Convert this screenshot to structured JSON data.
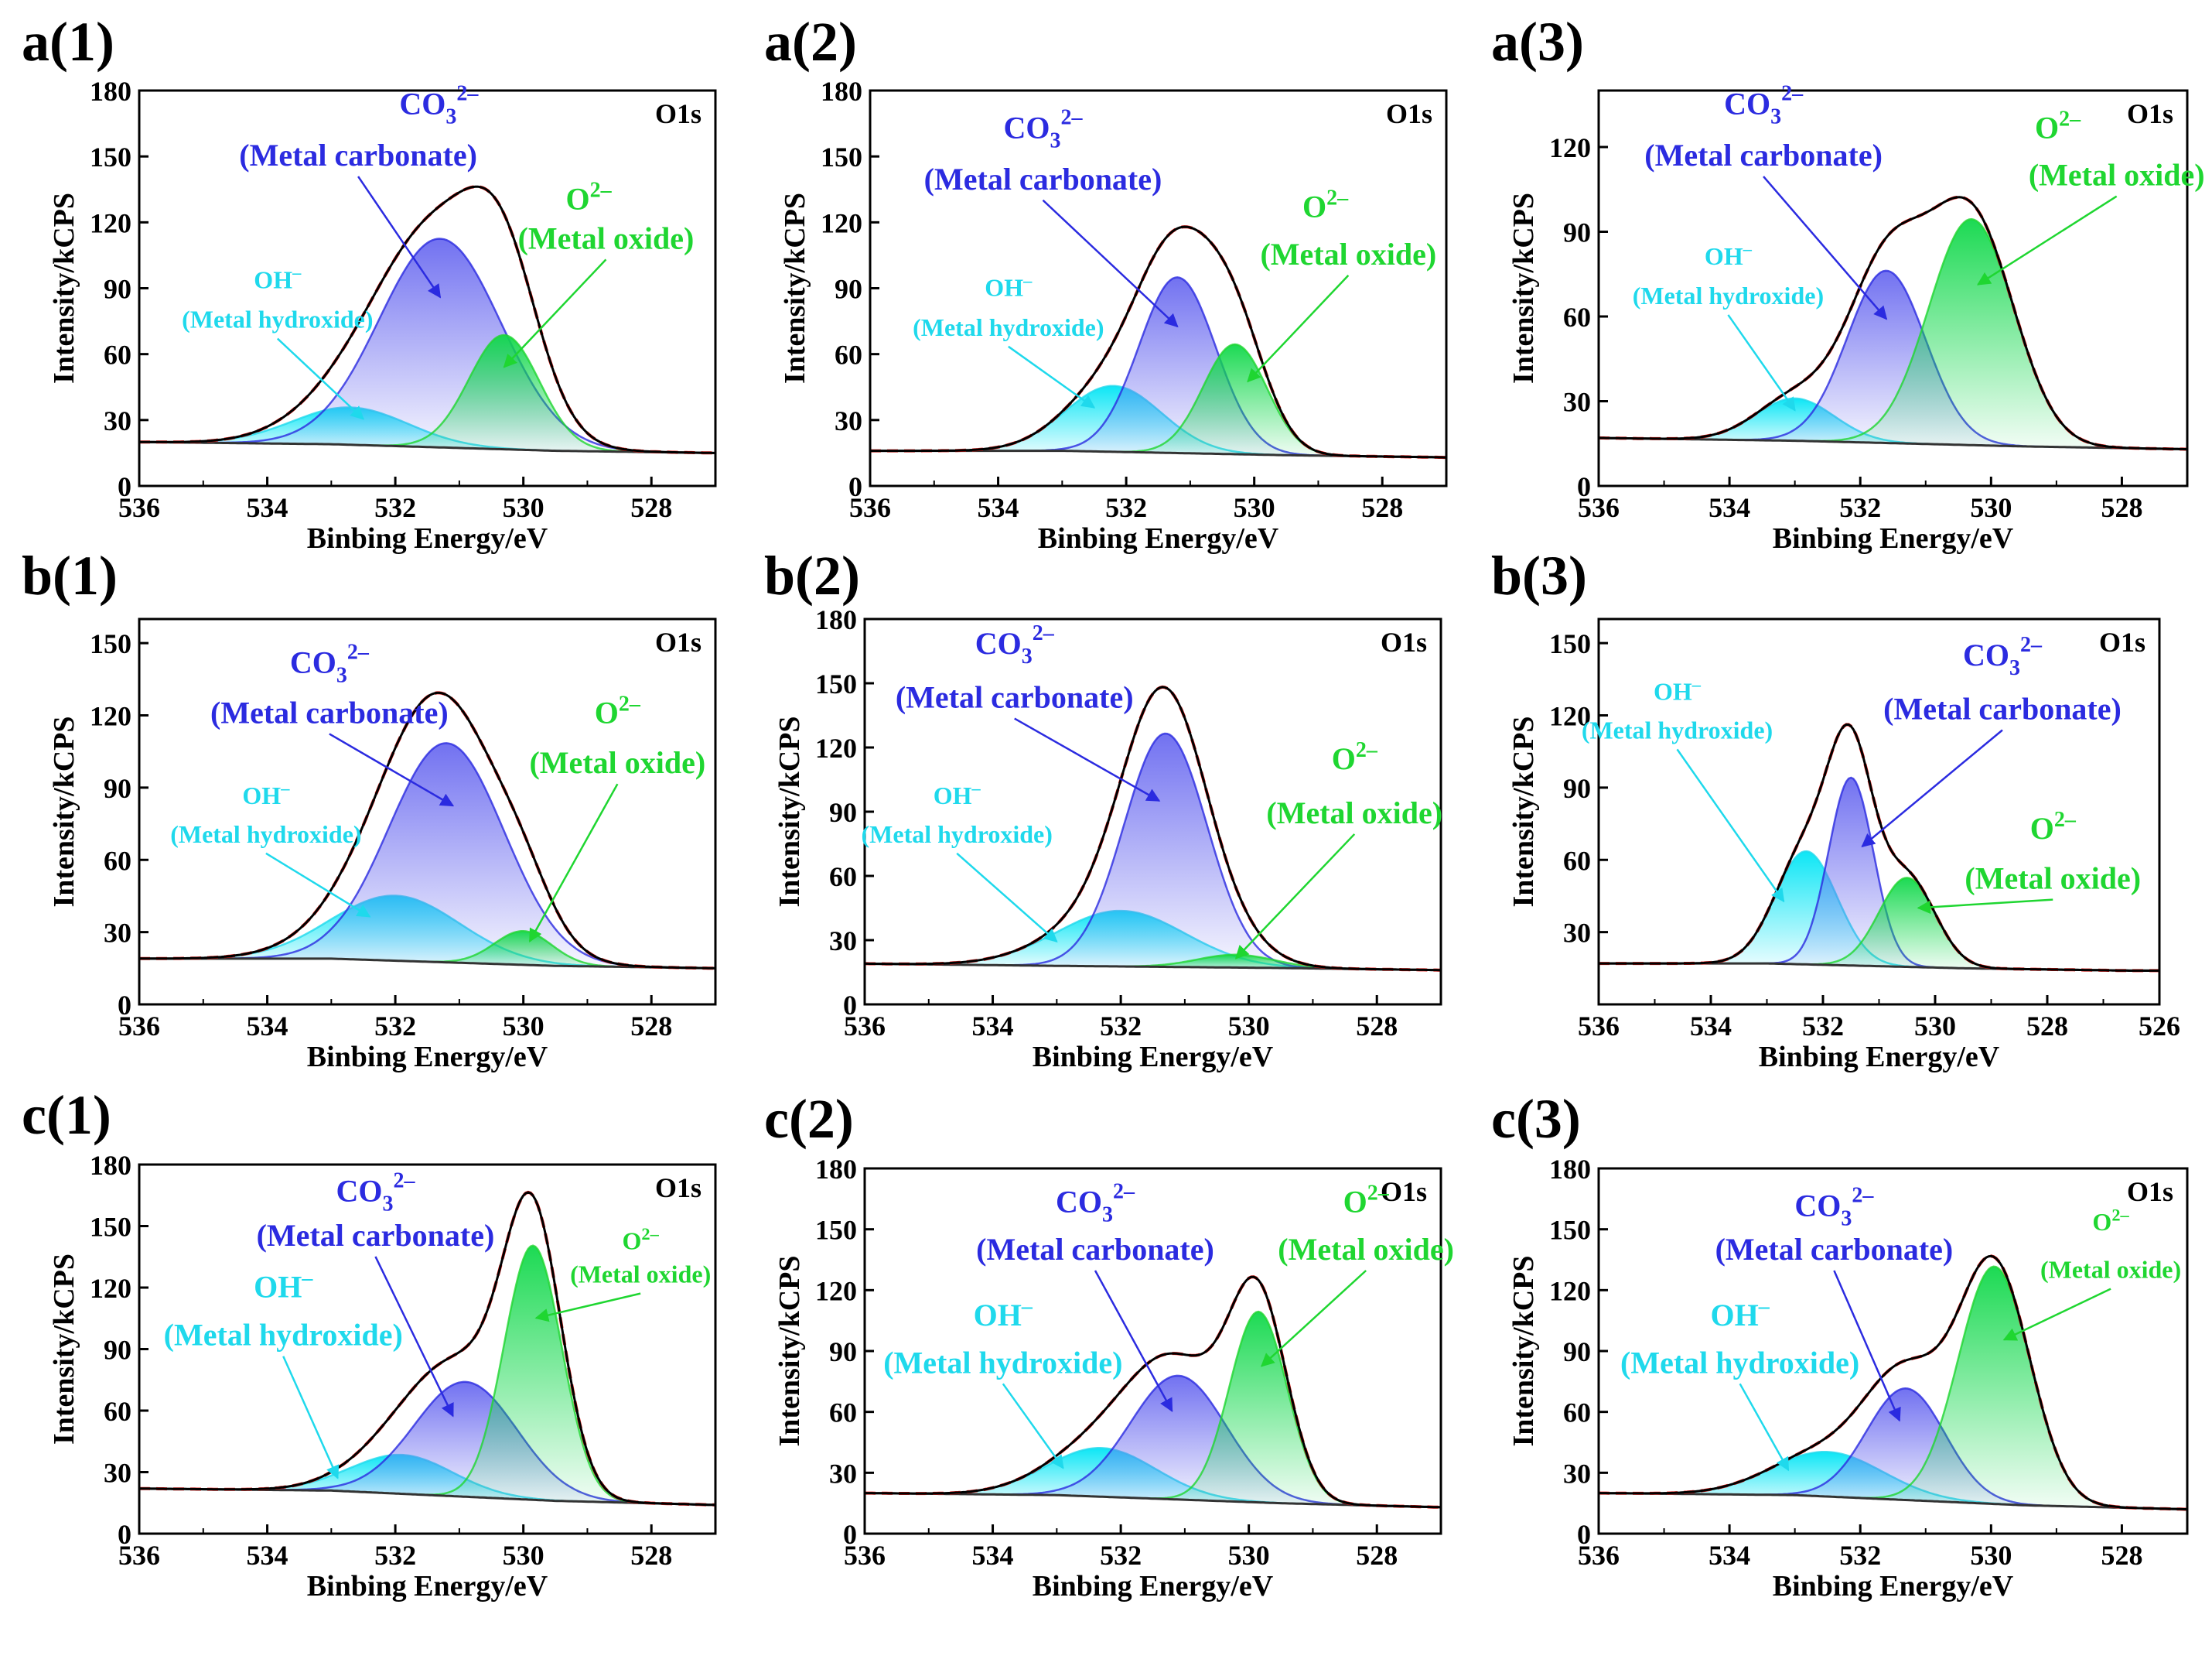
{
  "colors": {
    "carbonate": "#2b2be0",
    "carbonate_fill": "#6a6af0",
    "hydroxide": "#1fd9ec",
    "hydroxide_fill": "#00e5f5",
    "oxide": "#1fd631",
    "oxide_fill": "#10d84a",
    "envelope": "#000000",
    "fit": "#e0201c",
    "baseline": "#333333"
  },
  "icons": [
    "arrow-line-icon"
  ],
  "chart_data": [
    {
      "id": "a1",
      "panel_label": "a(1)",
      "type": "area",
      "corner_label": "O1s",
      "xlabel": "Binbing Energy/eV",
      "ylabel": "Intensity/kCPS",
      "xlim": [
        536,
        527
      ],
      "ylim": [
        0,
        180
      ],
      "xticks": [
        536,
        534,
        532,
        530,
        528
      ],
      "yticks": [
        0,
        30,
        60,
        90,
        120,
        150,
        180
      ],
      "baseline": [
        [
          536,
          20
        ],
        [
          533,
          19
        ],
        [
          529.5,
          16
        ],
        [
          527,
          15
        ]
      ],
      "peaks": [
        {
          "key": "hydroxide",
          "center": 532.7,
          "height": 17,
          "sigma": 0.9
        },
        {
          "key": "carbonate",
          "center": 531.3,
          "height": 95,
          "sigma": 0.95
        },
        {
          "key": "oxide",
          "center": 530.3,
          "height": 52,
          "sigma": 0.55
        }
      ],
      "annotations": [
        {
          "key": "carbonate",
          "formula": "CO",
          "sub": "3",
          "sup": "2–",
          "desc": "(Metal carbonate)"
        },
        {
          "key": "hydroxide",
          "formula": "OH",
          "sub": "",
          "sup": "–",
          "desc": "(Metal hydroxide)"
        },
        {
          "key": "oxide",
          "formula": "O",
          "sub": "",
          "sup": "2–",
          "desc": "(Metal oxide)"
        }
      ]
    },
    {
      "id": "a2",
      "panel_label": "a(2)",
      "type": "area",
      "corner_label": "O1s",
      "xlabel": "Binbing Energy/eV",
      "ylabel": "Intensity/kCPS",
      "xlim": [
        536,
        527
      ],
      "ylim": [
        0,
        180
      ],
      "xticks": [
        536,
        534,
        532,
        530,
        528
      ],
      "yticks": [
        0,
        30,
        60,
        90,
        120,
        150,
        180
      ],
      "baseline": [
        [
          536,
          16
        ],
        [
          533,
          16
        ],
        [
          529.5,
          14
        ],
        [
          527,
          13
        ]
      ],
      "peaks": [
        {
          "key": "hydroxide",
          "center": 532.2,
          "height": 30,
          "sigma": 0.75
        },
        {
          "key": "carbonate",
          "center": 531.2,
          "height": 80,
          "sigma": 0.6
        },
        {
          "key": "oxide",
          "center": 530.3,
          "height": 50,
          "sigma": 0.5
        }
      ],
      "annotations": [
        {
          "key": "carbonate",
          "formula": "CO",
          "sub": "3",
          "sup": "2–",
          "desc": "(Metal carbonate)"
        },
        {
          "key": "hydroxide",
          "formula": "OH",
          "sub": "",
          "sup": "–",
          "desc": "(Metal hydroxide)"
        },
        {
          "key": "oxide",
          "formula": "O",
          "sub": "",
          "sup": "2–",
          "desc": "(Metal oxide)"
        }
      ]
    },
    {
      "id": "a3",
      "panel_label": "a(3)",
      "type": "area",
      "corner_label": "O1s",
      "xlabel": "Binbing Energy/eV",
      "ylabel": "Intensity/kCPS",
      "xlim": [
        536,
        527
      ],
      "ylim": [
        0,
        140
      ],
      "xticks": [
        536,
        534,
        532,
        530,
        528
      ],
      "yticks": [
        0,
        30,
        60,
        90,
        120
      ],
      "baseline": [
        [
          536,
          17
        ],
        [
          533,
          16
        ],
        [
          529.5,
          14
        ],
        [
          527,
          13
        ]
      ],
      "peaks": [
        {
          "key": "hydroxide",
          "center": 533.0,
          "height": 15,
          "sigma": 0.6
        },
        {
          "key": "carbonate",
          "center": 531.6,
          "height": 61,
          "sigma": 0.6
        },
        {
          "key": "oxide",
          "center": 530.3,
          "height": 80,
          "sigma": 0.65
        }
      ],
      "annotations": [
        {
          "key": "carbonate",
          "formula": "CO",
          "sub": "3",
          "sup": "2–",
          "desc": "(Metal carbonate)"
        },
        {
          "key": "hydroxide",
          "formula": "OH",
          "sub": "",
          "sup": "–",
          "desc": "(Metal hydroxide)"
        },
        {
          "key": "oxide",
          "formula": "O",
          "sub": "",
          "sup": "2–",
          "desc": "(Metal oxide)"
        }
      ]
    },
    {
      "id": "b1",
      "panel_label": "b(1)",
      "type": "area",
      "corner_label": "O1s",
      "xlabel": "Binbing Energy/eV",
      "ylabel": "Intensity/kCPS",
      "xlim": [
        536,
        527
      ],
      "ylim": [
        0,
        160
      ],
      "xticks": [
        536,
        534,
        532,
        530,
        528
      ],
      "yticks": [
        0,
        30,
        60,
        90,
        120,
        150
      ],
      "baseline": [
        [
          536,
          19
        ],
        [
          533,
          19
        ],
        [
          529.5,
          16
        ],
        [
          527,
          15
        ]
      ],
      "peaks": [
        {
          "key": "hydroxide",
          "center": 532.0,
          "height": 27,
          "sigma": 1.0
        },
        {
          "key": "carbonate",
          "center": 531.2,
          "height": 91,
          "sigma": 0.9
        },
        {
          "key": "oxide",
          "center": 530.0,
          "height": 14,
          "sigma": 0.45
        }
      ],
      "annotations": [
        {
          "key": "carbonate",
          "formula": "CO",
          "sub": "3",
          "sup": "2–",
          "desc": "(Metal carbonate)"
        },
        {
          "key": "hydroxide",
          "formula": "OH",
          "sub": "",
          "sup": "–",
          "desc": "(Metal hydroxide)"
        },
        {
          "key": "oxide",
          "formula": "O",
          "sub": "",
          "sup": "2–",
          "desc": "(Metal oxide)"
        }
      ]
    },
    {
      "id": "b2",
      "panel_label": "b(2)",
      "type": "area",
      "corner_label": "O1s",
      "xlabel": "Binbing Energy/eV",
      "ylabel": "Intensity/kCPS",
      "xlim": [
        536,
        527
      ],
      "ylim": [
        0,
        180
      ],
      "xticks": [
        536,
        534,
        532,
        530,
        528
      ],
      "yticks": [
        0,
        30,
        60,
        90,
        120,
        150,
        180
      ],
      "baseline": [
        [
          536,
          19
        ],
        [
          533,
          18
        ],
        [
          529.5,
          17
        ],
        [
          527,
          16
        ]
      ],
      "peaks": [
        {
          "key": "hydroxide",
          "center": 532.0,
          "height": 26,
          "sigma": 1.0
        },
        {
          "key": "carbonate",
          "center": 531.3,
          "height": 109,
          "sigma": 0.65
        },
        {
          "key": "oxide",
          "center": 530.2,
          "height": 6,
          "sigma": 0.6
        }
      ],
      "annotations": [
        {
          "key": "carbonate",
          "formula": "CO",
          "sub": "3",
          "sup": "2–",
          "desc": "(Metal carbonate)"
        },
        {
          "key": "hydroxide",
          "formula": "OH",
          "sub": "",
          "sup": "–",
          "desc": "(Metal hydroxide)"
        },
        {
          "key": "oxide",
          "formula": "O",
          "sub": "",
          "sup": "2–",
          "desc": "(Metal oxide)"
        }
      ]
    },
    {
      "id": "b3",
      "panel_label": "b(3)",
      "type": "area",
      "corner_label": "O1s",
      "xlabel": "Binbing Energy/eV",
      "ylabel": "Intensity/kCPS",
      "xlim": [
        536,
        526
      ],
      "ylim": [
        0,
        160
      ],
      "xticks": [
        536,
        534,
        532,
        530,
        528,
        526
      ],
      "yticks": [
        30,
        60,
        90,
        120,
        150
      ],
      "baseline": [
        [
          536,
          17
        ],
        [
          533,
          17
        ],
        [
          529.5,
          15
        ],
        [
          526.5,
          14
        ]
      ],
      "peaks": [
        {
          "key": "hydroxide",
          "center": 532.3,
          "height": 47,
          "sigma": 0.55
        },
        {
          "key": "carbonate",
          "center": 531.5,
          "height": 78,
          "sigma": 0.4
        },
        {
          "key": "oxide",
          "center": 530.5,
          "height": 37,
          "sigma": 0.5
        }
      ],
      "annotations": [
        {
          "key": "carbonate",
          "formula": "CO",
          "sub": "3",
          "sup": "2–",
          "desc": "(Metal carbonate)"
        },
        {
          "key": "hydroxide",
          "formula": "OH",
          "sub": "",
          "sup": "–",
          "desc": "(Metal hydroxide)"
        },
        {
          "key": "oxide",
          "formula": "O",
          "sub": "",
          "sup": "2–",
          "desc": "(Metal oxide)"
        }
      ]
    },
    {
      "id": "c1",
      "panel_label": "c(1)",
      "type": "area",
      "corner_label": "O1s",
      "xlabel": "Binbing Energy/eV",
      "ylabel": "Intensity/kCPS",
      "xlim": [
        536,
        527
      ],
      "ylim": [
        0,
        180
      ],
      "xticks": [
        536,
        534,
        532,
        530,
        528
      ],
      "yticks": [
        0,
        30,
        60,
        90,
        120,
        150,
        180
      ],
      "baseline": [
        [
          536,
          22
        ],
        [
          533,
          21
        ],
        [
          529.5,
          16
        ],
        [
          527,
          14
        ]
      ],
      "peaks": [
        {
          "key": "hydroxide",
          "center": 531.9,
          "height": 19,
          "sigma": 0.8
        },
        {
          "key": "carbonate",
          "center": 530.9,
          "height": 56,
          "sigma": 0.8
        },
        {
          "key": "oxide",
          "center": 529.85,
          "height": 124,
          "sigma": 0.45
        }
      ],
      "annotations": [
        {
          "key": "carbonate",
          "formula": "CO",
          "sub": "3",
          "sup": "2–",
          "desc": "(Metal carbonate)"
        },
        {
          "key": "hydroxide",
          "formula": "OH",
          "sub": "",
          "sup": "–",
          "desc": "(Metal hydroxide)"
        },
        {
          "key": "oxide",
          "formula": "O",
          "sub": "",
          "sup": "2–",
          "desc": "(Metal oxide)"
        }
      ]
    },
    {
      "id": "c2",
      "panel_label": "c(2)",
      "type": "area",
      "corner_label": "O1s",
      "xlabel": "Binbing Energy/eV",
      "ylabel": "Intensity/kCPS",
      "xlim": [
        536,
        527
      ],
      "ylim": [
        0,
        180
      ],
      "xticks": [
        536,
        534,
        532,
        530,
        528
      ],
      "yticks": [
        0,
        30,
        60,
        90,
        120,
        150,
        180
      ],
      "baseline": [
        [
          536,
          20
        ],
        [
          533,
          19
        ],
        [
          529.5,
          15
        ],
        [
          527,
          13
        ]
      ],
      "peaks": [
        {
          "key": "hydroxide",
          "center": 532.3,
          "height": 24,
          "sigma": 0.85
        },
        {
          "key": "carbonate",
          "center": 531.1,
          "height": 61,
          "sigma": 0.75
        },
        {
          "key": "oxide",
          "center": 529.85,
          "height": 94,
          "sigma": 0.45
        }
      ],
      "annotations": [
        {
          "key": "carbonate",
          "formula": "CO",
          "sub": "3",
          "sup": "2–",
          "desc": "(Metal carbonate)"
        },
        {
          "key": "hydroxide",
          "formula": "OH",
          "sub": "",
          "sup": "–",
          "desc": "(Metal hydroxide)"
        },
        {
          "key": "oxide",
          "formula": "O",
          "sub": "",
          "sup": "2–",
          "desc": "(Metal oxide)"
        }
      ]
    },
    {
      "id": "c3",
      "panel_label": "c(3)",
      "type": "area",
      "corner_label": "O1s",
      "xlabel": "Binbing Energy/eV",
      "ylabel": "Intensity/kCPS",
      "xlim": [
        536,
        527
      ],
      "ylim": [
        0,
        180
      ],
      "xticks": [
        536,
        534,
        532,
        530,
        528
      ],
      "yticks": [
        0,
        30,
        60,
        90,
        120,
        150,
        180
      ],
      "baseline": [
        [
          536,
          20
        ],
        [
          533,
          19
        ],
        [
          529.5,
          14
        ],
        [
          527,
          12
        ]
      ],
      "peaks": [
        {
          "key": "hydroxide",
          "center": 532.5,
          "height": 22,
          "sigma": 0.85
        },
        {
          "key": "carbonate",
          "center": 531.3,
          "height": 55,
          "sigma": 0.6
        },
        {
          "key": "oxide",
          "center": 529.95,
          "height": 117,
          "sigma": 0.55
        }
      ],
      "annotations": [
        {
          "key": "carbonate",
          "formula": "CO",
          "sub": "3",
          "sup": "2–",
          "desc": "(Metal carbonate)"
        },
        {
          "key": "hydroxide",
          "formula": "OH",
          "sub": "",
          "sup": "–",
          "desc": "(Metal hydroxide)"
        },
        {
          "key": "oxide",
          "formula": "O",
          "sub": "",
          "sup": "2–",
          "desc": "(Metal oxide)"
        }
      ]
    }
  ]
}
